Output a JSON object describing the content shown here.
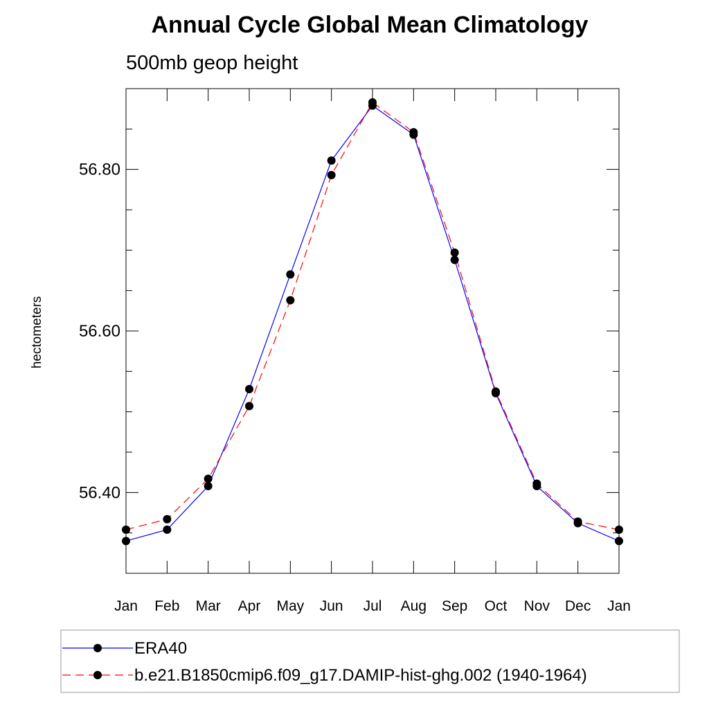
{
  "chart_data": {
    "type": "line",
    "title": "Annual Cycle Global Mean Climatology",
    "subtitle": "500mb geop height",
    "xlabel": "",
    "ylabel": "hectometers",
    "categories": [
      "Jan",
      "Feb",
      "Mar",
      "Apr",
      "May",
      "Jun",
      "Jul",
      "Aug",
      "Sep",
      "Oct",
      "Nov",
      "Dec",
      "Jan"
    ],
    "ylim": [
      56.3,
      56.9
    ],
    "yticks": [
      56.4,
      56.6,
      56.8
    ],
    "ytick_labels": [
      "56.40",
      "56.60",
      "56.80"
    ],
    "yminor_step": 0.05,
    "grid": false,
    "legend_position": "bottom",
    "series": [
      {
        "name": "ERA40",
        "color": "#0000ff",
        "dash": "solid",
        "values": [
          56.34,
          56.354,
          56.408,
          56.528,
          56.67,
          56.811,
          56.879,
          56.843,
          56.688,
          56.523,
          56.408,
          56.362,
          56.34
        ]
      },
      {
        "name": "b.e21.B1850cmip6.f09_g17.DAMIP-hist-ghg.002 (1940-1964)",
        "color": "#ff0000",
        "dash": "dashed",
        "values": [
          56.354,
          56.367,
          56.417,
          56.507,
          56.638,
          56.793,
          56.883,
          56.846,
          56.697,
          56.525,
          56.411,
          56.364,
          56.354
        ]
      }
    ]
  }
}
